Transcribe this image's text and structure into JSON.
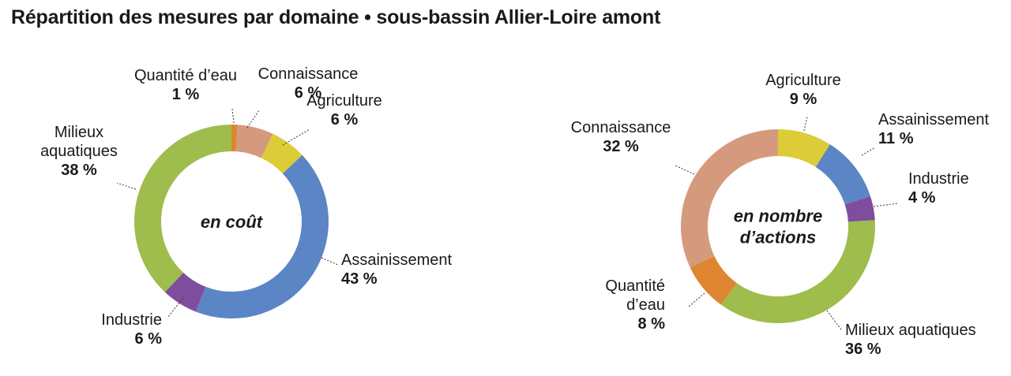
{
  "title": "Répartition des mesures par domaine • sous-bassin Allier-Loire amont",
  "colors": {
    "Quantité d'eau": "#dd8530",
    "Connaissance": "#d59a7e",
    "Agriculture": "#dccc38",
    "Assainissement": "#5b85c5",
    "Industrie": "#7e4d9c",
    "Milieux aquatiques": "#9ebd4c"
  },
  "chart_data": [
    {
      "type": "pie",
      "variant": "donut",
      "center_label": [
        "en coût"
      ],
      "slices": [
        {
          "key": "Quantité d'eau",
          "label": [
            "Quantité d’eau"
          ],
          "value": 1,
          "value_label": "1 %"
        },
        {
          "key": "Connaissance",
          "label": [
            "Connaissance"
          ],
          "value": 6,
          "value_label": "6 %"
        },
        {
          "key": "Agriculture",
          "label": [
            "Agriculture"
          ],
          "value": 6,
          "value_label": "6 %"
        },
        {
          "key": "Assainissement",
          "label": [
            "Assainissement"
          ],
          "value": 43,
          "value_label": "43 %"
        },
        {
          "key": "Industrie",
          "label": [
            "Industrie"
          ],
          "value": 6,
          "value_label": "6 %"
        },
        {
          "key": "Milieux aquatiques",
          "label": [
            "Milieux",
            "aquatiques"
          ],
          "value": 38,
          "value_label": "38 %"
        }
      ]
    },
    {
      "type": "pie",
      "variant": "donut",
      "center_label": [
        "en nombre",
        "d’actions"
      ],
      "slices": [
        {
          "key": "Agriculture",
          "label": [
            "Agriculture"
          ],
          "value": 9,
          "value_label": "9 %"
        },
        {
          "key": "Assainissement",
          "label": [
            "Assainissement"
          ],
          "value": 11,
          "value_label": "11 %"
        },
        {
          "key": "Industrie",
          "label": [
            "Industrie"
          ],
          "value": 4,
          "value_label": "4 %"
        },
        {
          "key": "Milieux aquatiques",
          "label": [
            "Milieux aquatiques"
          ],
          "value": 36,
          "value_label": "36 %"
        },
        {
          "key": "Quantité d'eau",
          "label": [
            "Quantité",
            "d’eau"
          ],
          "value": 8,
          "value_label": "8 %"
        },
        {
          "key": "Connaissance",
          "label": [
            "Connaissance"
          ],
          "value": 32,
          "value_label": "32 %"
        }
      ]
    }
  ]
}
